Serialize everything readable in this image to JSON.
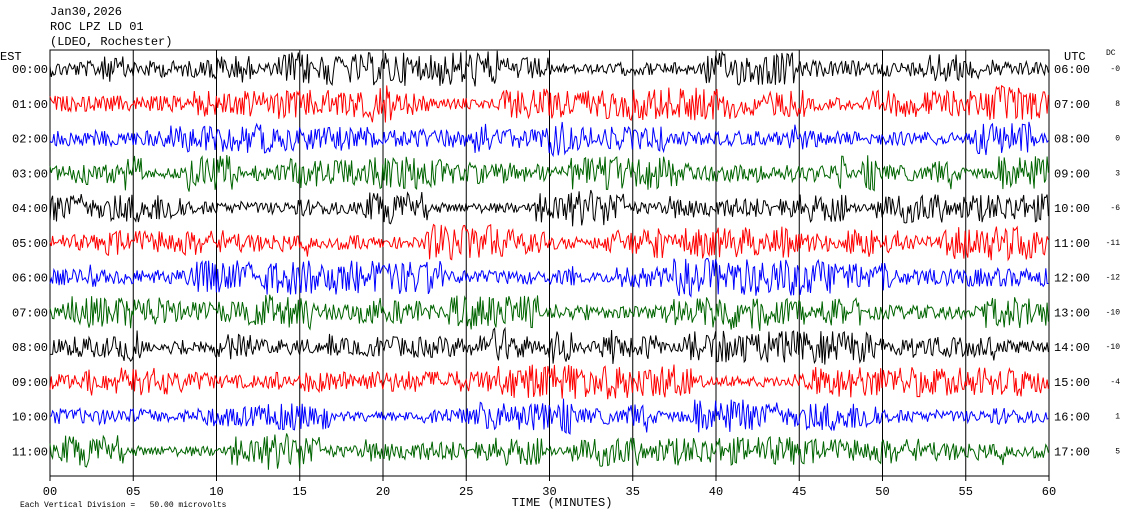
{
  "chart_data": {
    "type": "helicorder",
    "title_lines": [
      "Jan30,2026",
      "ROC LPZ LD 01",
      "(LDEO, Rochester)"
    ],
    "left_axis_label": "EST",
    "right_axis_label": "UTC",
    "dc_label": "DC",
    "xlabel": "TIME (MINUTES)",
    "scale_note": "Each Vertical Division =   50.00 microvolts",
    "xlim": [
      0,
      60
    ],
    "xticks": [
      {
        "value": 0,
        "label": "00"
      },
      {
        "value": 5,
        "label": "05"
      },
      10,
      15,
      20,
      25,
      30,
      35,
      40,
      45,
      50,
      55,
      60
    ],
    "rows": [
      {
        "est": "00:00",
        "utc": "06:00",
        "dc": "-0",
        "color": "#000000"
      },
      {
        "est": "01:00",
        "utc": "07:00",
        "dc": "8",
        "color": "#ff0000"
      },
      {
        "est": "02:00",
        "utc": "08:00",
        "dc": "0",
        "color": "#0000ff"
      },
      {
        "est": "03:00",
        "utc": "09:00",
        "dc": "3",
        "color": "#006400"
      },
      {
        "est": "04:00",
        "utc": "10:00",
        "dc": "-6",
        "color": "#000000"
      },
      {
        "est": "05:00",
        "utc": "11:00",
        "dc": "-11",
        "color": "#ff0000"
      },
      {
        "est": "06:00",
        "utc": "12:00",
        "dc": "-12",
        "color": "#0000ff"
      },
      {
        "est": "07:00",
        "utc": "13:00",
        "dc": "-10",
        "color": "#006400"
      },
      {
        "est": "08:00",
        "utc": "14:00",
        "dc": "-10",
        "color": "#000000"
      },
      {
        "est": "09:00",
        "utc": "15:00",
        "dc": "-4",
        "color": "#ff0000"
      },
      {
        "est": "10:00",
        "utc": "16:00",
        "dc": "1",
        "color": "#0000ff"
      },
      {
        "est": "11:00",
        "utc": "17:00",
        "dc": "5",
        "color": "#006400"
      }
    ],
    "grid": true
  }
}
